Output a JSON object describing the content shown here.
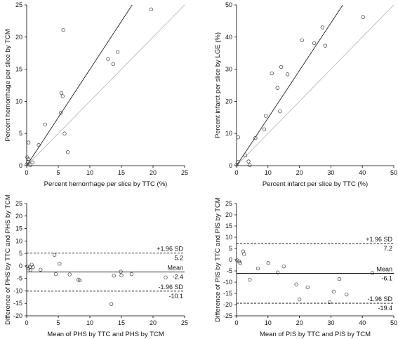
{
  "chart_data": [
    {
      "type": "scatter",
      "xlabel": "Percent hemorrhage per slice by TTC (%)",
      "ylabel": "Percent hemorrhage per slice by TCM",
      "xlim": [
        0,
        25
      ],
      "ylim": [
        0,
        25
      ],
      "xticks": [
        0,
        5,
        10,
        15,
        20,
        25
      ],
      "yticks": [
        0,
        5,
        10,
        15,
        20,
        25
      ],
      "points": [
        [
          0,
          0.2
        ],
        [
          0.2,
          0.6
        ],
        [
          0.3,
          1.0
        ],
        [
          0.1,
          1.3
        ],
        [
          0.6,
          0.1
        ],
        [
          0.9,
          0.5
        ],
        [
          0.3,
          3.6
        ],
        [
          1.9,
          3.2
        ],
        [
          2.9,
          6.4
        ],
        [
          5.4,
          8.2
        ],
        [
          5.5,
          11.3
        ],
        [
          5.7,
          10.8
        ],
        [
          5.8,
          21.1
        ],
        [
          6.0,
          5.0
        ],
        [
          6.5,
          2.1
        ],
        [
          12.9,
          16.6
        ],
        [
          13.7,
          15.8
        ],
        [
          14.4,
          17.7
        ],
        [
          19.7,
          24.3
        ]
      ],
      "lines": [
        {
          "name": "regression",
          "color": "#222222",
          "x": [
            0,
            16.7
          ],
          "y": [
            0,
            25
          ]
        },
        {
          "name": "identity",
          "color": "#bbbbbb",
          "x": [
            0,
            25
          ],
          "y": [
            0,
            25
          ]
        }
      ]
    },
    {
      "type": "scatter",
      "xlabel": "Percent infarct per slice by TTC (%)",
      "ylabel": "Percent infarct per slice by LGE (%)",
      "xlim": [
        0,
        50
      ],
      "ylim": [
        0,
        50
      ],
      "xticks": [
        0,
        10,
        20,
        30,
        40,
        50
      ],
      "yticks": [
        0,
        10,
        20,
        30,
        40,
        50
      ],
      "points": [
        [
          0,
          0.3
        ],
        [
          0.4,
          1.2
        ],
        [
          0.5,
          8.8
        ],
        [
          2.8,
          3.2
        ],
        [
          3.8,
          1.3
        ],
        [
          4.2,
          0.2
        ],
        [
          6.0,
          8.6
        ],
        [
          8.8,
          11.3
        ],
        [
          9.3,
          15.5
        ],
        [
          11.2,
          28.7
        ],
        [
          13.0,
          24.2
        ],
        [
          13.8,
          16.9
        ],
        [
          14.2,
          30.7
        ],
        [
          16.2,
          28.4
        ],
        [
          20.8,
          39.0
        ],
        [
          24.7,
          38.1
        ],
        [
          27.3,
          43.0
        ],
        [
          28.2,
          37.3
        ],
        [
          40.2,
          46.2
        ]
      ],
      "lines": [
        {
          "name": "regression",
          "color": "#222222",
          "x": [
            0,
            33.8
          ],
          "y": [
            0,
            50
          ]
        },
        {
          "name": "identity",
          "color": "#bbbbbb",
          "x": [
            0,
            50
          ],
          "y": [
            0,
            50
          ]
        }
      ]
    },
    {
      "type": "scatter",
      "xlabel": "Mean of PHS by TTC and PHS by TCM",
      "ylabel": "Difference of PHS by TTC and PHS by TCM",
      "xlim": [
        0,
        25
      ],
      "ylim": [
        -20,
        25
      ],
      "xticks": [
        0,
        5,
        10,
        15,
        20,
        25
      ],
      "yticks": [
        -20,
        -15,
        -10,
        -5,
        0,
        5,
        10,
        15,
        20,
        25
      ],
      "points": [
        [
          0.1,
          -0.2
        ],
        [
          0.3,
          -1.0
        ],
        [
          0.5,
          -0.4
        ],
        [
          0.6,
          -1.7
        ],
        [
          0.8,
          0.5
        ],
        [
          1.0,
          -0.5
        ],
        [
          2.2,
          -1.5
        ],
        [
          4.4,
          4.4
        ],
        [
          4.6,
          -3.3
        ],
        [
          5.2,
          0.9
        ],
        [
          6.8,
          -3.4
        ],
        [
          8.2,
          -5.5
        ],
        [
          8.4,
          -5.8
        ],
        [
          13.4,
          -15.3
        ],
        [
          13.8,
          -3.9
        ],
        [
          14.9,
          -2.3
        ],
        [
          15.0,
          -3.8
        ],
        [
          16.6,
          -3.3
        ],
        [
          22.0,
          -4.6
        ]
      ],
      "limits": [
        {
          "name": "+1.96 SD",
          "value": 5.2,
          "label": "+1.96 SD",
          "value_label": "5.2",
          "style": "dashed"
        },
        {
          "name": "Mean",
          "value": -2.4,
          "label": "Mean",
          "value_label": "-2.4",
          "style": "solid"
        },
        {
          "name": "-1.96 SD",
          "value": -10.1,
          "label": "-1.96 SD",
          "value_label": "-10.1",
          "style": "dashed"
        }
      ]
    },
    {
      "type": "scatter",
      "xlabel": "Mean of PIS by TTC and PIS by TCM",
      "ylabel": "Difference of PIS by TTC and PIS by TCM",
      "xlim": [
        0,
        50
      ],
      "ylim": [
        -25,
        25
      ],
      "xticks": [
        0,
        10,
        20,
        30,
        40,
        50
      ],
      "yticks": [
        -25,
        -20,
        -15,
        -10,
        -5,
        0,
        5,
        10,
        15,
        20,
        25
      ],
      "points": [
        [
          0.2,
          -0.3
        ],
        [
          0.8,
          -0.8
        ],
        [
          1.2,
          -1.5
        ],
        [
          2.1,
          3.7
        ],
        [
          2.4,
          2.5
        ],
        [
          4.2,
          -8.9
        ],
        [
          6.8,
          -3.9
        ],
        [
          10.1,
          -1.5
        ],
        [
          13.1,
          -5.7
        ],
        [
          15.0,
          -3.0
        ],
        [
          19.0,
          -11.0
        ],
        [
          20.0,
          -17.7
        ],
        [
          22.6,
          -12.3
        ],
        [
          29.6,
          -18.9
        ],
        [
          30.9,
          -14.2
        ],
        [
          32.7,
          -8.6
        ],
        [
          35.0,
          -15.5
        ],
        [
          43.2,
          -5.9
        ]
      ],
      "limits": [
        {
          "name": "+1.96 SD",
          "value": 7.2,
          "label": "+1.96 SD",
          "value_label": "7.2",
          "style": "dashed"
        },
        {
          "name": "Mean",
          "value": -6.1,
          "label": "Mean",
          "value_label": "-6.1",
          "style": "solid"
        },
        {
          "name": "-1.96 SD",
          "value": -19.4,
          "label": "-1.96 SD",
          "value_label": "-19.4",
          "style": "dashed"
        }
      ]
    }
  ]
}
